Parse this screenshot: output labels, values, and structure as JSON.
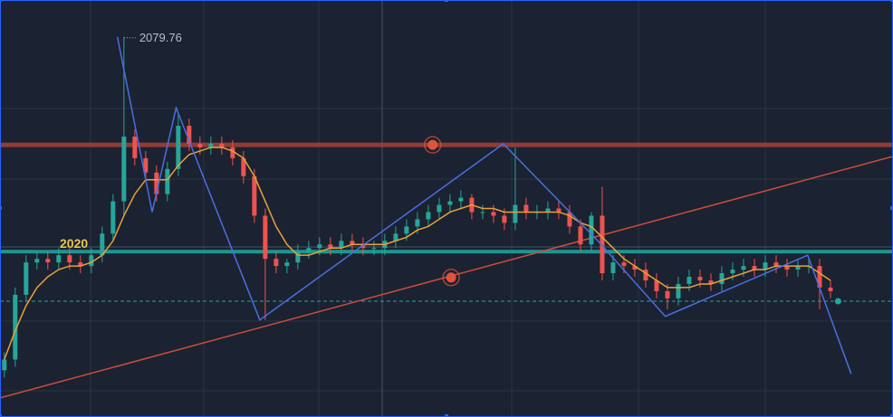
{
  "chart_data": {
    "type": "candlestick",
    "xlim": [
      -0.4,
      81.75
    ],
    "ylim": [
      1974,
      2090
    ],
    "up_color": "#26a69a",
    "down_color": "#ef5350",
    "open": [
      1987,
      1990,
      2008,
      2017,
      2018,
      2017,
      2019,
      2017,
      2016,
      2019,
      2025,
      2034,
      2052,
      2046,
      2042,
      2036,
      2043,
      2055,
      2050,
      2049,
      2050,
      2049,
      2046,
      2041,
      2030,
      2018,
      2016,
      2017,
      2020,
      2021,
      2022,
      2021,
      2023,
      2022,
      2021,
      2021,
      2023,
      2025,
      2027,
      2029,
      2031,
      2033,
      2034,
      2035,
      2031,
      2031,
      2030,
      2028,
      2033,
      2031,
      2031,
      2032,
      2031,
      2027,
      2022,
      2030,
      2014,
      2017,
      2016,
      2015,
      2012,
      2009,
      2007,
      2011,
      2013,
      2012,
      2011,
      2014,
      2015,
      2016,
      2015,
      2017,
      2016,
      2015,
      2016,
      2016,
      2010
    ],
    "high": [
      1992,
      2010,
      2019,
      2020,
      2020,
      2021,
      2021,
      2019,
      2021,
      2027,
      2036,
      2079.76,
      2054,
      2048,
      2044,
      2045,
      2058,
      2057,
      2052,
      2052,
      2052,
      2051,
      2048,
      2043,
      2032,
      2020,
      2018,
      2022,
      2023,
      2024,
      2024,
      2025,
      2025,
      2024,
      2023,
      2025,
      2027,
      2029,
      2031,
      2033,
      2035,
      2036,
      2037,
      2036,
      2033,
      2033,
      2032,
      2049,
      2035,
      2033,
      2034,
      2034,
      2033,
      2029,
      2031,
      2038,
      2019,
      2019,
      2018,
      2017,
      2014,
      2011,
      2013,
      2015,
      2015,
      2014,
      2016,
      2017,
      2018,
      2018,
      2019,
      2019,
      2018,
      2018,
      2018,
      2018,
      2012
    ],
    "low": [
      1985,
      1988,
      2006,
      2015,
      2015,
      2015,
      2015,
      2014,
      2014,
      2017,
      2023,
      2030,
      2044,
      2040,
      2034,
      2034,
      2041,
      2048,
      2047,
      2047,
      2047,
      2044,
      2039,
      2028,
      2001,
      2014,
      2014,
      2015,
      2018,
      2019,
      2019,
      2019,
      2020,
      2019,
      2019,
      2019,
      2021,
      2023,
      2025,
      2027,
      2029,
      2031,
      2032,
      2029,
      2029,
      2028,
      2026,
      2026,
      2029,
      2029,
      2029,
      2029,
      2025,
      2020,
      2020,
      2012,
      2012,
      2014,
      2013,
      2010,
      2007,
      2004,
      2005,
      2009,
      2010,
      2009,
      2009,
      2012,
      2013,
      2013,
      2013,
      2014,
      2013,
      2013,
      2014,
      2004,
      2007
    ],
    "close": [
      1990,
      2008,
      2017,
      2018,
      2017,
      2019,
      2017,
      2016,
      2019,
      2025,
      2034,
      2052,
      2046,
      2042,
      2036,
      2043,
      2055,
      2050,
      2049,
      2050,
      2049,
      2046,
      2041,
      2030,
      2018,
      2016,
      2017,
      2020,
      2021,
      2022,
      2021,
      2023,
      2022,
      2021,
      2021,
      2023,
      2025,
      2027,
      2029,
      2031,
      2033,
      2034,
      2035,
      2031,
      2031,
      2030,
      2028,
      2033,
      2031,
      2031,
      2032,
      2031,
      2027,
      2022,
      2030,
      2014,
      2017,
      2016,
      2015,
      2012,
      2009,
      2007,
      2011,
      2013,
      2012,
      2011,
      2014,
      2015,
      2016,
      2015,
      2017,
      2016,
      2015,
      2016,
      2016,
      2010,
      2009
    ],
    "moving_average": {
      "color": "#e8a13a",
      "values": [
        1990,
        1998,
        2005,
        2010,
        2013,
        2015,
        2016,
        2016,
        2017,
        2019,
        2023,
        2030,
        2036,
        2040,
        2040,
        2040,
        2044,
        2047,
        2048,
        2049,
        2049,
        2048,
        2046,
        2041,
        2034,
        2027,
        2022,
        2019,
        2019,
        2020,
        2021,
        2021,
        2022,
        2022,
        2022,
        2022,
        2023,
        2024,
        2026,
        2027,
        2029,
        2031,
        2032,
        2033,
        2032,
        2032,
        2031,
        2031,
        2031,
        2031,
        2031,
        2031,
        2030,
        2028,
        2027,
        2024,
        2021,
        2018,
        2016,
        2014,
        2012,
        2010,
        2010,
        2010,
        2011,
        2011,
        2012,
        2013,
        2014,
        2015,
        2015,
        2016,
        2016,
        2016,
        2016,
        2014,
        2012
      ]
    },
    "zigzag": {
      "color": "#4a6fe0",
      "x": [
        10.4,
        13.6,
        15.8,
        23.5,
        45.9,
        54.6,
        60.8,
        73.9,
        77.9
      ],
      "values": [
        2079.76,
        2031,
        2060,
        2001,
        2050,
        2023,
        2002,
        2019,
        1986
      ]
    },
    "trend_line": {
      "color": "#c8503c",
      "x": [
        -0.4,
        81.75
      ],
      "values": [
        1979.3,
        2046.5
      ]
    },
    "resistance": {
      "color": "#b8453a",
      "value": 2049.7
    },
    "support": {
      "color": "#1fa9a0",
      "value": 2020
    },
    "markers": {
      "color": "#e0533d",
      "x": [
        39.4,
        41.1
      ],
      "values": [
        2049.7,
        2012.8
      ]
    },
    "last_price": {
      "color": "#1fa9a0",
      "x": 76.7,
      "value": 2006.2
    }
  }
}
